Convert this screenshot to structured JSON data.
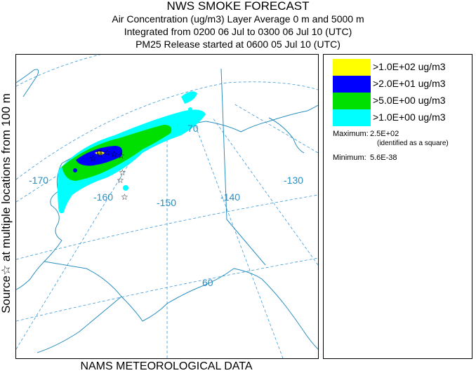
{
  "titles": {
    "line1": "NWS SMOKE FORECAST",
    "line2": "Air Concentration (ug/m3) Layer Average    0 m and  5000 m",
    "line3": "Integrated from 0200 06 Jul to 0300 06 Jul 10 (UTC)",
    "line4": "PM25 Release started at 0600 05 Jul 10 (UTC)"
  },
  "side_label": "Source☆  at multiple locations   from   100 m",
  "footer": "NAMS METEOROLOGICAL DATA",
  "legend": {
    "items": [
      {
        "label": ">1.0E+02 ug/m3",
        "color": "#ffff00"
      },
      {
        "label": ">2.0E+01 ug/m3",
        "color": "#0000ff"
      },
      {
        "label": ">5.0E+00 ug/m3",
        "color": "#00e000"
      },
      {
        "label": ">1.0E+00 ug/m3",
        "color": "#00ffff"
      }
    ],
    "maximum_label": "Maximum:",
    "maximum_value": "2.5E+02",
    "maximum_note": "(identified as a square)",
    "minimum_label": "Minimum:",
    "minimum_value": "5.6E-38"
  },
  "map": {
    "longitude_labels": [
      "-170",
      "-160",
      "-150",
      "-140",
      "-130"
    ],
    "latitude_labels": [
      "70",
      "60"
    ],
    "grid_color": "#3a9ad9",
    "coast_color": "#2a8fc0"
  }
}
